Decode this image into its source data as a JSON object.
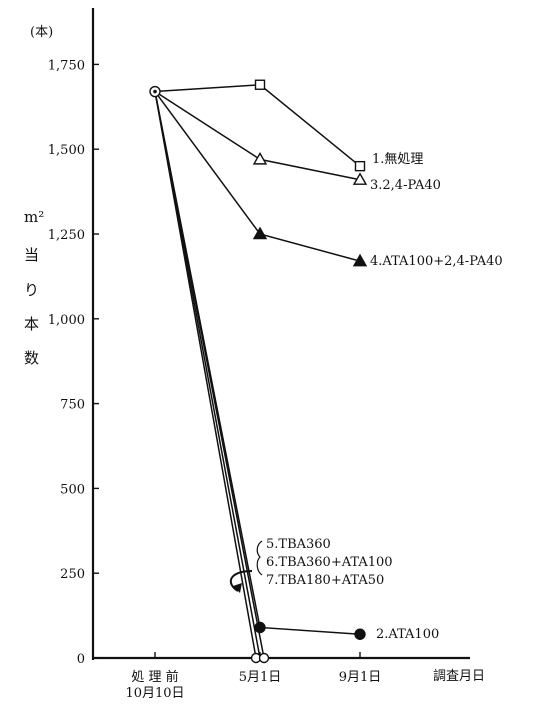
{
  "chart_data": {
    "type": "line",
    "unit_label": "(本)",
    "ylabel": "m² 当り本数",
    "ylabel_chars": [
      "m²",
      "当",
      "り",
      "本",
      "数"
    ],
    "x_title": "調査月日",
    "categories": [
      {
        "line1": "処 理 前",
        "line2": "10月10日"
      },
      {
        "line1": "5月1日",
        "line2": ""
      },
      {
        "line1": "9月1日",
        "line2": ""
      }
    ],
    "ylim": [
      0,
      1875
    ],
    "yticks": [
      0,
      250,
      500,
      750,
      1000,
      1250,
      1500,
      1750
    ],
    "ytick_labels": [
      "0",
      "250",
      "500",
      "750",
      "1,000",
      "1,250",
      "1,500",
      "1,750"
    ],
    "grid": false,
    "series": [
      {
        "name": "1.無処理",
        "marker": "open-square",
        "values": [
          1670,
          1690,
          1450
        ]
      },
      {
        "name": "3.2,4-PA40",
        "marker": "open-triangle",
        "values": [
          1670,
          1470,
          1410
        ]
      },
      {
        "name": "4.ATA100+2,4-PA40",
        "marker": "filled-triangle",
        "values": [
          1670,
          1250,
          1170
        ]
      },
      {
        "name": "2.ATA100",
        "marker": "filled-circle",
        "values": [
          1670,
          90,
          70
        ]
      },
      {
        "name": "5.TBA360",
        "marker": "open-circle",
        "values": [
          1670,
          0,
          null
        ]
      },
      {
        "name": "6.TBA360+ATA100",
        "marker": "open-circle",
        "values": [
          1670,
          0,
          null
        ]
      },
      {
        "name": "7.TBA180+ATA50",
        "marker": "open-circle",
        "values": [
          1670,
          0,
          null
        ]
      }
    ],
    "grouped_label": [
      "5.TBA360",
      "6.TBA360+ATA100",
      "7.TBA180+ATA50"
    ]
  }
}
